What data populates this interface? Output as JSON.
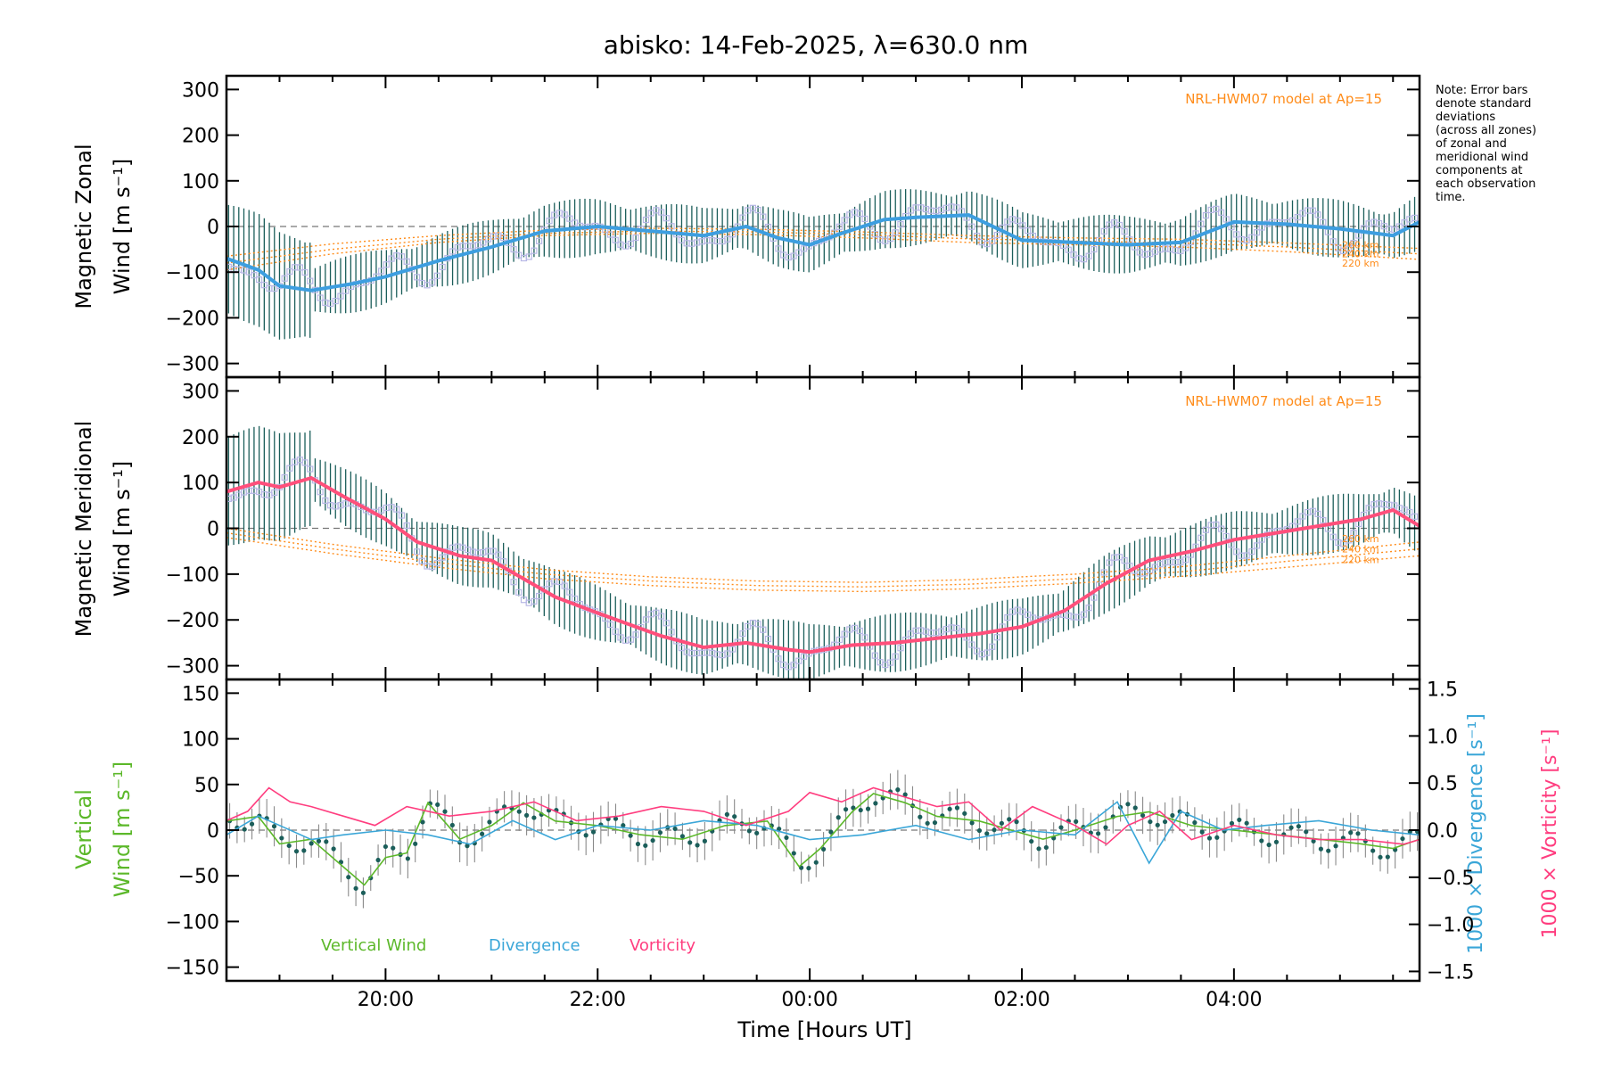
{
  "colors": {
    "zonal_mean": "#3d9ee0",
    "meridional_mean": "#ff4f7b",
    "model": "#ff8c1a",
    "error_bar": "#1b5e5a",
    "vertical_wind": "#5cb82a",
    "divergence": "#3aa6d8",
    "vorticity": "#ff3d7f",
    "scatter": "#b8b8e6"
  },
  "chart_data": [
    {
      "type": "line",
      "panel": "zonal",
      "title": "abisko: 14-Feb-2025, λ=630.0 nm",
      "ylabel_line1": "Magnetic Zonal",
      "ylabel_line2": "Wind [m s⁻¹]",
      "ylim": [
        -330,
        330
      ],
      "yticks": [
        -300,
        -200,
        -100,
        0,
        100,
        200,
        300
      ],
      "xlim": [
        18.5,
        29.75
      ],
      "model_label": "NRL-HWM07 model at Ap=15",
      "model_altitudes": [
        "260 km",
        "240 km",
        "220 km"
      ],
      "series": [
        {
          "name": "Zonal wind (zone mean)",
          "x": [
            18.5,
            18.8,
            19.0,
            19.3,
            19.7,
            20.0,
            20.5,
            21.0,
            21.5,
            22.0,
            22.5,
            23.0,
            23.4,
            23.7,
            24.0,
            24.3,
            24.7,
            25.0,
            25.5,
            26.0,
            26.5,
            27.0,
            27.5,
            28.0,
            28.5,
            29.0,
            29.5,
            29.75
          ],
          "y": [
            -70,
            -95,
            -130,
            -140,
            -125,
            -110,
            -75,
            -45,
            -10,
            0,
            -10,
            -20,
            0,
            -25,
            -40,
            -15,
            15,
            20,
            25,
            -30,
            -35,
            -40,
            -35,
            10,
            5,
            -5,
            -20,
            10
          ]
        },
        {
          "name": "NRL-HWM07 220 km",
          "x": [
            18.5,
            19.5,
            20.5,
            21.5,
            22.5,
            23.5,
            24.5,
            25.5,
            26.5,
            27.5,
            28.5,
            29.75
          ],
          "y": [
            -95,
            -60,
            -35,
            -20,
            -15,
            -18,
            -25,
            -35,
            -40,
            -45,
            -55,
            -72
          ]
        },
        {
          "name": "NRL-HWM07 240 km",
          "x": [
            18.5,
            19.5,
            20.5,
            21.5,
            22.5,
            23.5,
            24.5,
            25.5,
            26.5,
            27.5,
            28.5,
            29.75
          ],
          "y": [
            -80,
            -50,
            -28,
            -15,
            -10,
            -12,
            -18,
            -27,
            -32,
            -36,
            -45,
            -60
          ]
        },
        {
          "name": "NRL-HWM07 260 km",
          "x": [
            18.5,
            19.5,
            20.5,
            21.5,
            22.5,
            23.5,
            24.5,
            25.5,
            26.5,
            27.5,
            28.5,
            29.75
          ],
          "y": [
            -65,
            -38,
            -20,
            -8,
            -4,
            -6,
            -12,
            -20,
            -25,
            -28,
            -36,
            -48
          ]
        }
      ]
    },
    {
      "type": "line",
      "panel": "meridional",
      "ylabel_line1": "Magnetic Meridional",
      "ylabel_line2": "Wind [m s⁻¹]",
      "ylim": [
        -330,
        330
      ],
      "yticks": [
        -300,
        -200,
        -100,
        0,
        100,
        200,
        300
      ],
      "xlim": [
        18.5,
        29.75
      ],
      "model_label": "NRL-HWM07 model at Ap=15",
      "model_altitudes": [
        "260 km",
        "240 km",
        "220 km"
      ],
      "series": [
        {
          "name": "Meridional wind (zone mean)",
          "x": [
            18.5,
            18.8,
            19.0,
            19.3,
            19.6,
            20.0,
            20.3,
            20.7,
            21.0,
            21.3,
            21.6,
            22.0,
            22.3,
            22.6,
            23.0,
            23.4,
            23.8,
            24.0,
            24.4,
            24.8,
            25.2,
            25.6,
            26.0,
            26.4,
            26.8,
            27.2,
            27.6,
            28.0,
            28.4,
            28.8,
            29.2,
            29.5,
            29.75
          ],
          "y": [
            80,
            100,
            90,
            110,
            70,
            20,
            -30,
            -60,
            -70,
            -110,
            -150,
            -185,
            -210,
            -235,
            -260,
            -250,
            -265,
            -270,
            -255,
            -250,
            -240,
            -230,
            -215,
            -180,
            -120,
            -70,
            -50,
            -25,
            -10,
            5,
            20,
            40,
            5
          ]
        },
        {
          "name": "NRL-HWM07 220 km",
          "x": [
            18.5,
            19.5,
            20.5,
            21.5,
            22.5,
            23.5,
            24.5,
            25.5,
            26.5,
            27.5,
            28.5,
            29.75
          ],
          "y": [
            -20,
            -55,
            -85,
            -110,
            -125,
            -135,
            -138,
            -132,
            -120,
            -105,
            -85,
            -60
          ]
        },
        {
          "name": "NRL-HWM07 240 km",
          "x": [
            18.5,
            19.5,
            20.5,
            21.5,
            22.5,
            23.5,
            24.5,
            25.5,
            26.5,
            27.5,
            28.5,
            29.75
          ],
          "y": [
            -10,
            -45,
            -75,
            -100,
            -115,
            -125,
            -128,
            -122,
            -110,
            -95,
            -72,
            -45
          ]
        },
        {
          "name": "NRL-HWM07 260 km",
          "x": [
            18.5,
            19.5,
            20.5,
            21.5,
            22.5,
            23.5,
            24.5,
            25.5,
            26.5,
            27.5,
            28.5,
            29.75
          ],
          "y": [
            0,
            -35,
            -65,
            -90,
            -106,
            -115,
            -118,
            -112,
            -100,
            -84,
            -60,
            -30
          ]
        }
      ]
    },
    {
      "type": "line",
      "panel": "vertical",
      "xlabel": "Time [Hours UT]",
      "xticks": [
        20,
        22,
        24,
        26,
        28
      ],
      "xtick_labels": [
        "20:00",
        "22:00",
        "00:00",
        "02:00",
        "04:00"
      ],
      "xlim": [
        18.5,
        29.75
      ],
      "ylabel_line1": "Vertical",
      "ylabel_line2": "Wind [m s⁻¹]",
      "ylim": [
        -165,
        165
      ],
      "yticks": [
        -150,
        -100,
        -50,
        0,
        50,
        100,
        150
      ],
      "y2lim": [
        -1.6,
        1.6
      ],
      "y2ticks": [
        -1.5,
        -1.0,
        -0.5,
        0.0,
        0.5,
        1.0,
        1.5
      ],
      "y2tick_labels": [
        "−1.5",
        "−1.0",
        "−0.5",
        "0.0",
        "0.5",
        "1.0",
        "1.5"
      ],
      "y2label_divergence": "1000 × Divergence [s⁻¹]",
      "y2label_vorticity": "1000 × Vorticity [s⁻¹]",
      "legend": [
        "Vertical Wind",
        "Divergence",
        "Vorticity"
      ],
      "series": [
        {
          "name": "Vertical Wind",
          "x": [
            18.5,
            18.8,
            19.0,
            19.3,
            19.6,
            19.8,
            20.0,
            20.2,
            20.4,
            20.7,
            21.0,
            21.3,
            21.6,
            22.0,
            22.4,
            22.8,
            23.2,
            23.6,
            23.9,
            24.1,
            24.4,
            24.6,
            24.9,
            25.2,
            25.6,
            25.9,
            26.2,
            26.5,
            26.9,
            27.2,
            27.6,
            28.0,
            28.4,
            28.8,
            29.2,
            29.5,
            29.75
          ],
          "y": [
            10,
            15,
            -15,
            -10,
            -40,
            -60,
            -30,
            -25,
            30,
            -10,
            5,
            30,
            10,
            5,
            -5,
            -10,
            5,
            10,
            -40,
            -20,
            20,
            40,
            30,
            15,
            10,
            0,
            -10,
            0,
            15,
            20,
            5,
            0,
            -5,
            -10,
            -15,
            -20,
            -10
          ]
        },
        {
          "name": "Divergence",
          "x": [
            18.5,
            18.8,
            19.0,
            19.3,
            19.6,
            20.0,
            20.4,
            20.8,
            21.2,
            21.6,
            22.0,
            22.5,
            23.0,
            23.5,
            24.0,
            24.5,
            25.0,
            25.5,
            26.0,
            26.5,
            26.9,
            27.2,
            27.5,
            27.9,
            28.3,
            28.8,
            29.3,
            29.75
          ],
          "y": [
            -0.05,
            0.15,
            0.05,
            -0.1,
            -0.05,
            0.0,
            -0.05,
            -0.15,
            0.1,
            -0.1,
            0.05,
            0.0,
            0.1,
            0.05,
            -0.1,
            -0.05,
            0.05,
            -0.1,
            0.0,
            -0.05,
            0.3,
            -0.35,
            0.2,
            0.0,
            0.05,
            0.1,
            0.0,
            -0.05
          ]
        },
        {
          "name": "Vorticity",
          "x": [
            18.5,
            18.7,
            18.9,
            19.1,
            19.3,
            19.6,
            19.9,
            20.2,
            20.6,
            21.0,
            21.4,
            21.8,
            22.2,
            22.6,
            23.0,
            23.4,
            23.8,
            24.0,
            24.3,
            24.6,
            24.9,
            25.2,
            25.5,
            25.8,
            26.1,
            26.5,
            26.8,
            27.0,
            27.3,
            27.6,
            28.0,
            28.4,
            28.8,
            29.2,
            29.6,
            29.75
          ],
          "y": [
            0.1,
            0.2,
            0.45,
            0.3,
            0.25,
            0.15,
            0.05,
            0.25,
            0.15,
            0.2,
            0.3,
            0.1,
            0.15,
            0.25,
            0.2,
            0.05,
            0.2,
            0.4,
            0.3,
            0.45,
            0.35,
            0.25,
            0.3,
            0.0,
            0.25,
            0.05,
            -0.15,
            0.05,
            0.2,
            -0.1,
            0.05,
            -0.05,
            -0.1,
            -0.1,
            -0.15,
            -0.1
          ]
        }
      ]
    }
  ],
  "note": {
    "lines": [
      "Note: Error bars",
      "denote standard",
      "deviations",
      "(across all zones)",
      "of zonal and",
      "meridional wind",
      "components at",
      "each observation",
      "time."
    ]
  }
}
